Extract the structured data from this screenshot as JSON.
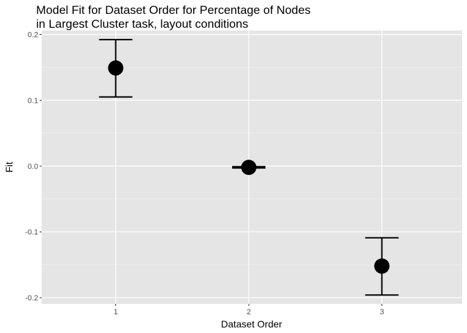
{
  "chart_data": {
    "type": "scatter",
    "title_lines": [
      "Model Fit for Dataset Order for Percentage of Nodes",
      "in Largest Cluster task, layout conditions"
    ],
    "xlabel": "Dataset Order",
    "ylabel": "Fit",
    "categories": [
      "1",
      "2",
      "3"
    ],
    "y_ticks": [
      0.2,
      0.1,
      0.0,
      -0.1,
      -0.2
    ],
    "y_tick_labels": [
      "0.2",
      "0.1",
      "0.0",
      "-0.1",
      "-0.2"
    ],
    "ylim": [
      -0.2094,
      0.2059
    ],
    "grid": true,
    "points": [
      {
        "x": "1",
        "fit": 0.149,
        "lower": 0.105,
        "upper": 0.192
      },
      {
        "x": "2",
        "fit": -0.002,
        "lower": -0.003,
        "upper": -0.001
      },
      {
        "x": "3",
        "fit": -0.152,
        "lower": -0.196,
        "upper": -0.109
      }
    ],
    "colors": {
      "panel_background": "#e5e5e5",
      "grid_major": "#ffffff",
      "grid_minor": "#f2f2f2",
      "point": "#000000",
      "errorbar": "#000000",
      "tick_label": "#4d4d4d"
    }
  }
}
